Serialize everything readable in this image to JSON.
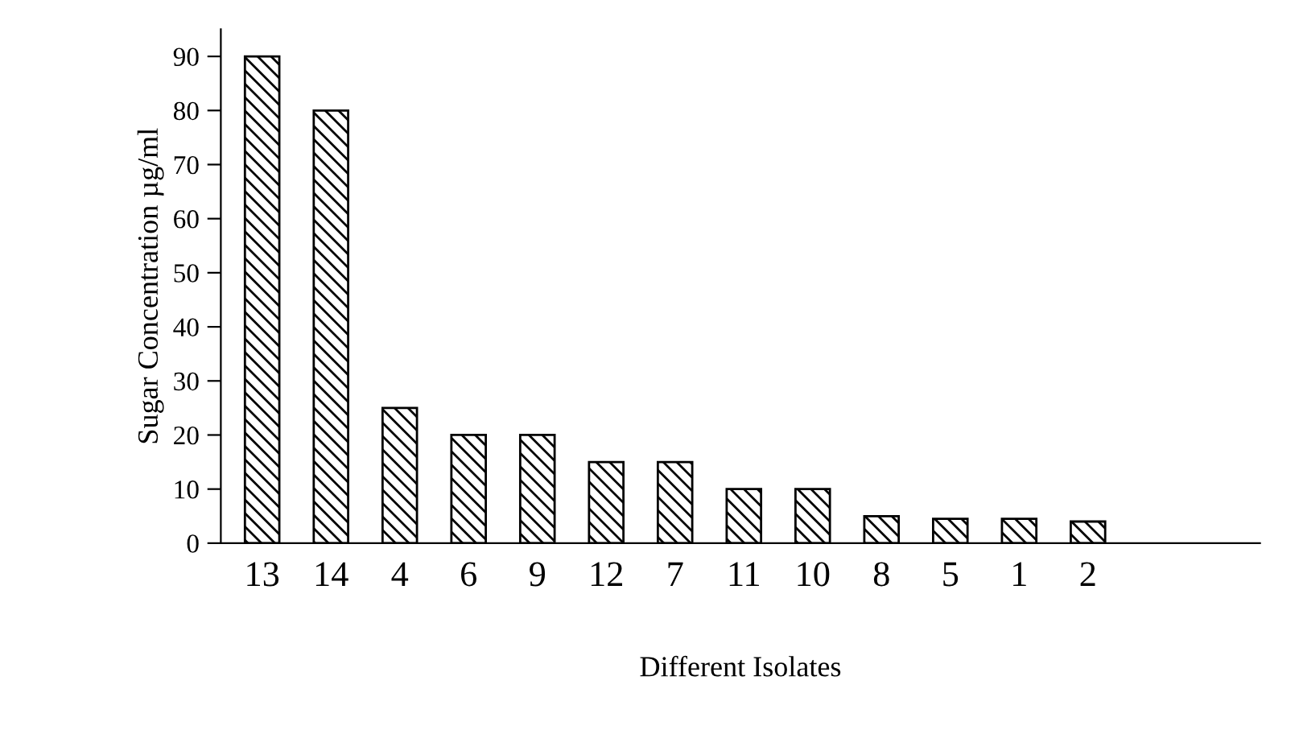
{
  "chart_data": {
    "type": "bar",
    "xlabel": "Different Isolates",
    "ylabel": "Sugar Concentration µg/ml",
    "categories": [
      "13",
      "14",
      "4",
      "6",
      "9",
      "12",
      "7",
      "11",
      "10",
      "8",
      "5",
      "1",
      "2"
    ],
    "values": [
      90,
      80,
      25,
      20,
      20,
      15,
      15,
      10,
      10,
      5,
      4.5,
      4.5,
      4
    ],
    "color": "#000000",
    "ylim": [
      0,
      95
    ],
    "yticks": [
      0,
      10,
      20,
      30,
      40,
      50,
      60,
      70,
      80,
      90
    ],
    "grid": false,
    "legend": false
  }
}
